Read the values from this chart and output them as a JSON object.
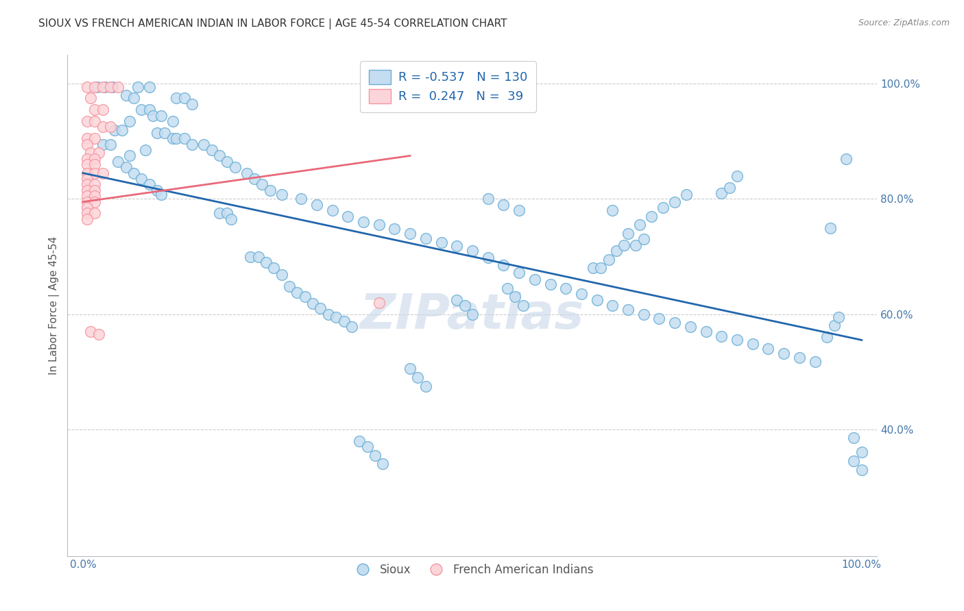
{
  "title": "SIOUX VS FRENCH AMERICAN INDIAN IN LABOR FORCE | AGE 45-54 CORRELATION CHART",
  "source": "Source: ZipAtlas.com",
  "ylabel": "In Labor Force | Age 45-54",
  "xlim": [
    -0.02,
    1.02
  ],
  "ylim": [
    0.18,
    1.05
  ],
  "y_tick_positions": [
    0.4,
    0.6,
    0.8,
    1.0
  ],
  "y_tick_labels": [
    "40.0%",
    "60.0%",
    "80.0%",
    "100.0%"
  ],
  "blue_color": "#c5ddf0",
  "blue_edge_color": "#6aaed6",
  "pink_color": "#fcd5da",
  "pink_edge_color": "#f4959f",
  "blue_line_color": "#2166ac",
  "pink_line_color": "#e8697a",
  "blue_trend": [
    0.0,
    0.845,
    1.0,
    0.555
  ],
  "pink_trend": [
    0.0,
    0.795,
    0.42,
    0.875
  ],
  "watermark": "ZIPatlas",
  "background_color": "#ffffff",
  "grid_color": "#cccccc",
  "title_color": "#333333",
  "blue_dots": [
    [
      0.018,
      0.995
    ],
    [
      0.028,
      0.995
    ],
    [
      0.038,
      0.995
    ],
    [
      0.07,
      0.995
    ],
    [
      0.085,
      0.995
    ],
    [
      0.055,
      0.98
    ],
    [
      0.065,
      0.975
    ],
    [
      0.12,
      0.975
    ],
    [
      0.13,
      0.975
    ],
    [
      0.14,
      0.965
    ],
    [
      0.075,
      0.955
    ],
    [
      0.085,
      0.955
    ],
    [
      0.09,
      0.945
    ],
    [
      0.1,
      0.945
    ],
    [
      0.06,
      0.935
    ],
    [
      0.115,
      0.935
    ],
    [
      0.04,
      0.92
    ],
    [
      0.05,
      0.92
    ],
    [
      0.095,
      0.915
    ],
    [
      0.105,
      0.915
    ],
    [
      0.115,
      0.905
    ],
    [
      0.12,
      0.905
    ],
    [
      0.13,
      0.905
    ],
    [
      0.025,
      0.895
    ],
    [
      0.035,
      0.895
    ],
    [
      0.14,
      0.895
    ],
    [
      0.155,
      0.895
    ],
    [
      0.08,
      0.885
    ],
    [
      0.165,
      0.885
    ],
    [
      0.06,
      0.875
    ],
    [
      0.175,
      0.875
    ],
    [
      0.045,
      0.865
    ],
    [
      0.185,
      0.865
    ],
    [
      0.055,
      0.855
    ],
    [
      0.195,
      0.855
    ],
    [
      0.065,
      0.845
    ],
    [
      0.21,
      0.845
    ],
    [
      0.075,
      0.835
    ],
    [
      0.22,
      0.835
    ],
    [
      0.085,
      0.825
    ],
    [
      0.23,
      0.825
    ],
    [
      0.095,
      0.815
    ],
    [
      0.24,
      0.815
    ],
    [
      0.1,
      0.808
    ],
    [
      0.255,
      0.808
    ],
    [
      0.28,
      0.8
    ],
    [
      0.52,
      0.8
    ],
    [
      0.3,
      0.79
    ],
    [
      0.54,
      0.79
    ],
    [
      0.32,
      0.78
    ],
    [
      0.56,
      0.78
    ],
    [
      0.175,
      0.775
    ],
    [
      0.185,
      0.775
    ],
    [
      0.34,
      0.77
    ],
    [
      0.19,
      0.765
    ],
    [
      0.36,
      0.76
    ],
    [
      0.38,
      0.755
    ],
    [
      0.4,
      0.748
    ],
    [
      0.42,
      0.74
    ],
    [
      0.44,
      0.732
    ],
    [
      0.46,
      0.725
    ],
    [
      0.48,
      0.718
    ],
    [
      0.5,
      0.71
    ],
    [
      0.215,
      0.7
    ],
    [
      0.225,
      0.7
    ],
    [
      0.52,
      0.698
    ],
    [
      0.235,
      0.69
    ],
    [
      0.54,
      0.685
    ],
    [
      0.245,
      0.68
    ],
    [
      0.56,
      0.672
    ],
    [
      0.255,
      0.668
    ],
    [
      0.58,
      0.66
    ],
    [
      0.6,
      0.652
    ],
    [
      0.265,
      0.648
    ],
    [
      0.62,
      0.645
    ],
    [
      0.275,
      0.638
    ],
    [
      0.64,
      0.635
    ],
    [
      0.285,
      0.63
    ],
    [
      0.66,
      0.625
    ],
    [
      0.295,
      0.618
    ],
    [
      0.68,
      0.615
    ],
    [
      0.305,
      0.61
    ],
    [
      0.7,
      0.608
    ],
    [
      0.315,
      0.6
    ],
    [
      0.72,
      0.6
    ],
    [
      0.325,
      0.595
    ],
    [
      0.74,
      0.592
    ],
    [
      0.335,
      0.588
    ],
    [
      0.76,
      0.585
    ],
    [
      0.345,
      0.578
    ],
    [
      0.78,
      0.578
    ],
    [
      0.8,
      0.57
    ],
    [
      0.82,
      0.562
    ],
    [
      0.84,
      0.555
    ],
    [
      0.86,
      0.548
    ],
    [
      0.88,
      0.54
    ],
    [
      0.9,
      0.532
    ],
    [
      0.92,
      0.525
    ],
    [
      0.94,
      0.518
    ],
    [
      0.955,
      0.56
    ],
    [
      0.96,
      0.75
    ],
    [
      0.965,
      0.58
    ],
    [
      0.97,
      0.595
    ],
    [
      0.98,
      0.87
    ],
    [
      0.99,
      0.385
    ],
    [
      1.0,
      0.36
    ],
    [
      0.99,
      0.345
    ],
    [
      1.0,
      0.33
    ],
    [
      0.655,
      0.68
    ],
    [
      0.665,
      0.68
    ],
    [
      0.675,
      0.695
    ],
    [
      0.685,
      0.71
    ],
    [
      0.695,
      0.72
    ],
    [
      0.71,
      0.72
    ],
    [
      0.72,
      0.73
    ],
    [
      0.68,
      0.78
    ],
    [
      0.82,
      0.81
    ],
    [
      0.83,
      0.82
    ],
    [
      0.84,
      0.84
    ],
    [
      0.7,
      0.74
    ],
    [
      0.715,
      0.755
    ],
    [
      0.73,
      0.77
    ],
    [
      0.745,
      0.785
    ],
    [
      0.76,
      0.795
    ],
    [
      0.775,
      0.808
    ],
    [
      0.545,
      0.645
    ],
    [
      0.555,
      0.63
    ],
    [
      0.565,
      0.615
    ],
    [
      0.48,
      0.625
    ],
    [
      0.49,
      0.615
    ],
    [
      0.5,
      0.6
    ],
    [
      0.42,
      0.505
    ],
    [
      0.43,
      0.49
    ],
    [
      0.44,
      0.475
    ],
    [
      0.355,
      0.38
    ],
    [
      0.365,
      0.37
    ],
    [
      0.375,
      0.355
    ],
    [
      0.385,
      0.34
    ]
  ],
  "pink_dots": [
    [
      0.005,
      0.995
    ],
    [
      0.015,
      0.995
    ],
    [
      0.025,
      0.995
    ],
    [
      0.035,
      0.995
    ],
    [
      0.045,
      0.995
    ],
    [
      0.01,
      0.975
    ],
    [
      0.015,
      0.955
    ],
    [
      0.025,
      0.955
    ],
    [
      0.005,
      0.935
    ],
    [
      0.015,
      0.935
    ],
    [
      0.025,
      0.925
    ],
    [
      0.035,
      0.925
    ],
    [
      0.005,
      0.905
    ],
    [
      0.015,
      0.905
    ],
    [
      0.005,
      0.895
    ],
    [
      0.01,
      0.88
    ],
    [
      0.02,
      0.88
    ],
    [
      0.005,
      0.87
    ],
    [
      0.015,
      0.87
    ],
    [
      0.005,
      0.86
    ],
    [
      0.015,
      0.86
    ],
    [
      0.005,
      0.845
    ],
    [
      0.015,
      0.845
    ],
    [
      0.025,
      0.845
    ],
    [
      0.005,
      0.835
    ],
    [
      0.005,
      0.825
    ],
    [
      0.015,
      0.825
    ],
    [
      0.005,
      0.815
    ],
    [
      0.015,
      0.815
    ],
    [
      0.005,
      0.805
    ],
    [
      0.015,
      0.805
    ],
    [
      0.005,
      0.795
    ],
    [
      0.015,
      0.795
    ],
    [
      0.005,
      0.785
    ],
    [
      0.005,
      0.775
    ],
    [
      0.015,
      0.775
    ],
    [
      0.005,
      0.765
    ],
    [
      0.01,
      0.57
    ],
    [
      0.02,
      0.565
    ],
    [
      0.38,
      0.62
    ]
  ]
}
